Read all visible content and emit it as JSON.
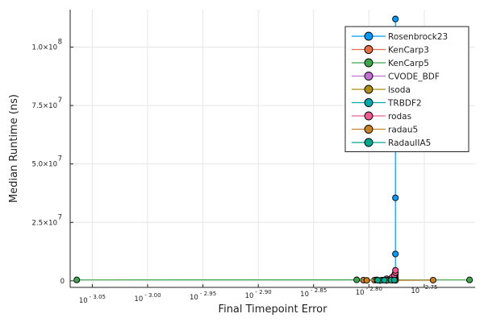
{
  "chart_data": {
    "type": "line",
    "xlabel": "Final Timepoint Error",
    "ylabel": "Median Runtime (ns)",
    "xscale": "log10",
    "xlim_log10": [
      -3.07,
      -2.704
    ],
    "ylim": [
      -2800000,
      116000000
    ],
    "grid": true,
    "legend_position": "top-right",
    "x_ticks": [
      {
        "v": -3.05,
        "base": "10",
        "exp": "- 3.05"
      },
      {
        "v": -3.0,
        "base": "10",
        "exp": "- 3.00"
      },
      {
        "v": -2.95,
        "base": "10",
        "exp": "- 2.95"
      },
      {
        "v": -2.9,
        "base": "10",
        "exp": "- 2.90"
      },
      {
        "v": -2.85,
        "base": "10",
        "exp": "- 2.85"
      },
      {
        "v": -2.8,
        "base": "10",
        "exp": "- 2.80"
      },
      {
        "v": -2.75,
        "base": "10",
        "exp": "- 2.75"
      }
    ],
    "y_ticks": [
      {
        "v": 0,
        "mant": "0",
        "exp": ""
      },
      {
        "v": 25000000,
        "mant": "2.5×10",
        "exp": "7"
      },
      {
        "v": 50000000,
        "mant": "5.0×10",
        "exp": "7"
      },
      {
        "v": 75000000,
        "mant": "7.5×10",
        "exp": "7"
      },
      {
        "v": 100000000,
        "mant": "1.0×10",
        "exp": "8"
      }
    ],
    "series": [
      {
        "name": "Rosenbrock23",
        "color": "#009AFA",
        "points": [
          [
            -2.776,
            112000000
          ],
          [
            -2.776,
            35500000
          ],
          [
            -2.776,
            11500000
          ],
          [
            -2.776,
            3500000
          ],
          [
            -2.776,
            1200000
          ]
        ]
      },
      {
        "name": "KenCarp3",
        "color": "#E36F47",
        "points": [
          [
            -2.805,
            300000
          ],
          [
            -2.795,
            300000
          ],
          [
            -2.785,
            300000
          ],
          [
            -2.779,
            300000
          ],
          [
            -2.776,
            300000
          ]
        ]
      },
      {
        "name": "KenCarp5",
        "color": "#3EA44E",
        "points": [
          [
            -3.064,
            400000
          ],
          [
            -2.811,
            450000
          ],
          [
            -2.793,
            400000
          ],
          [
            -2.784,
            400000
          ],
          [
            -2.776,
            400000
          ],
          [
            -2.709,
            400000
          ]
        ]
      },
      {
        "name": "CVODE_BDF",
        "color": "#C271D2",
        "points": [
          [
            -2.784,
            900000
          ],
          [
            -2.779,
            1300000
          ],
          [
            -2.777,
            2000000
          ],
          [
            -2.776,
            2600000
          ]
        ]
      },
      {
        "name": "lsoda",
        "color": "#AC8D18",
        "points": [
          [
            -2.788,
            350000
          ],
          [
            -2.782,
            400000
          ],
          [
            -2.778,
            500000
          ],
          [
            -2.776,
            600000
          ]
        ]
      },
      {
        "name": "TRBDF2",
        "color": "#00A9AD",
        "points": [
          [
            -2.79,
            150000
          ],
          [
            -2.784,
            200000
          ],
          [
            -2.779,
            250000
          ],
          [
            -2.776,
            300000
          ]
        ]
      },
      {
        "name": "rodas",
        "color": "#ED5D92",
        "points": [
          [
            -2.779,
            1500000
          ],
          [
            -2.777,
            2500000
          ],
          [
            -2.776,
            3500000
          ],
          [
            -2.776,
            4500000
          ]
        ]
      },
      {
        "name": "radau5",
        "color": "#C68225",
        "points": [
          [
            -2.802,
            200000
          ],
          [
            -2.784,
            200000
          ],
          [
            -2.776,
            200000
          ],
          [
            -2.742,
            300000
          ]
        ]
      },
      {
        "name": "RadauIIA5",
        "color": "#00A98D",
        "points": [
          [
            -2.792,
            250000
          ],
          [
            -2.786,
            250000
          ],
          [
            -2.78,
            300000
          ],
          [
            -2.777,
            350000
          ]
        ]
      }
    ]
  }
}
